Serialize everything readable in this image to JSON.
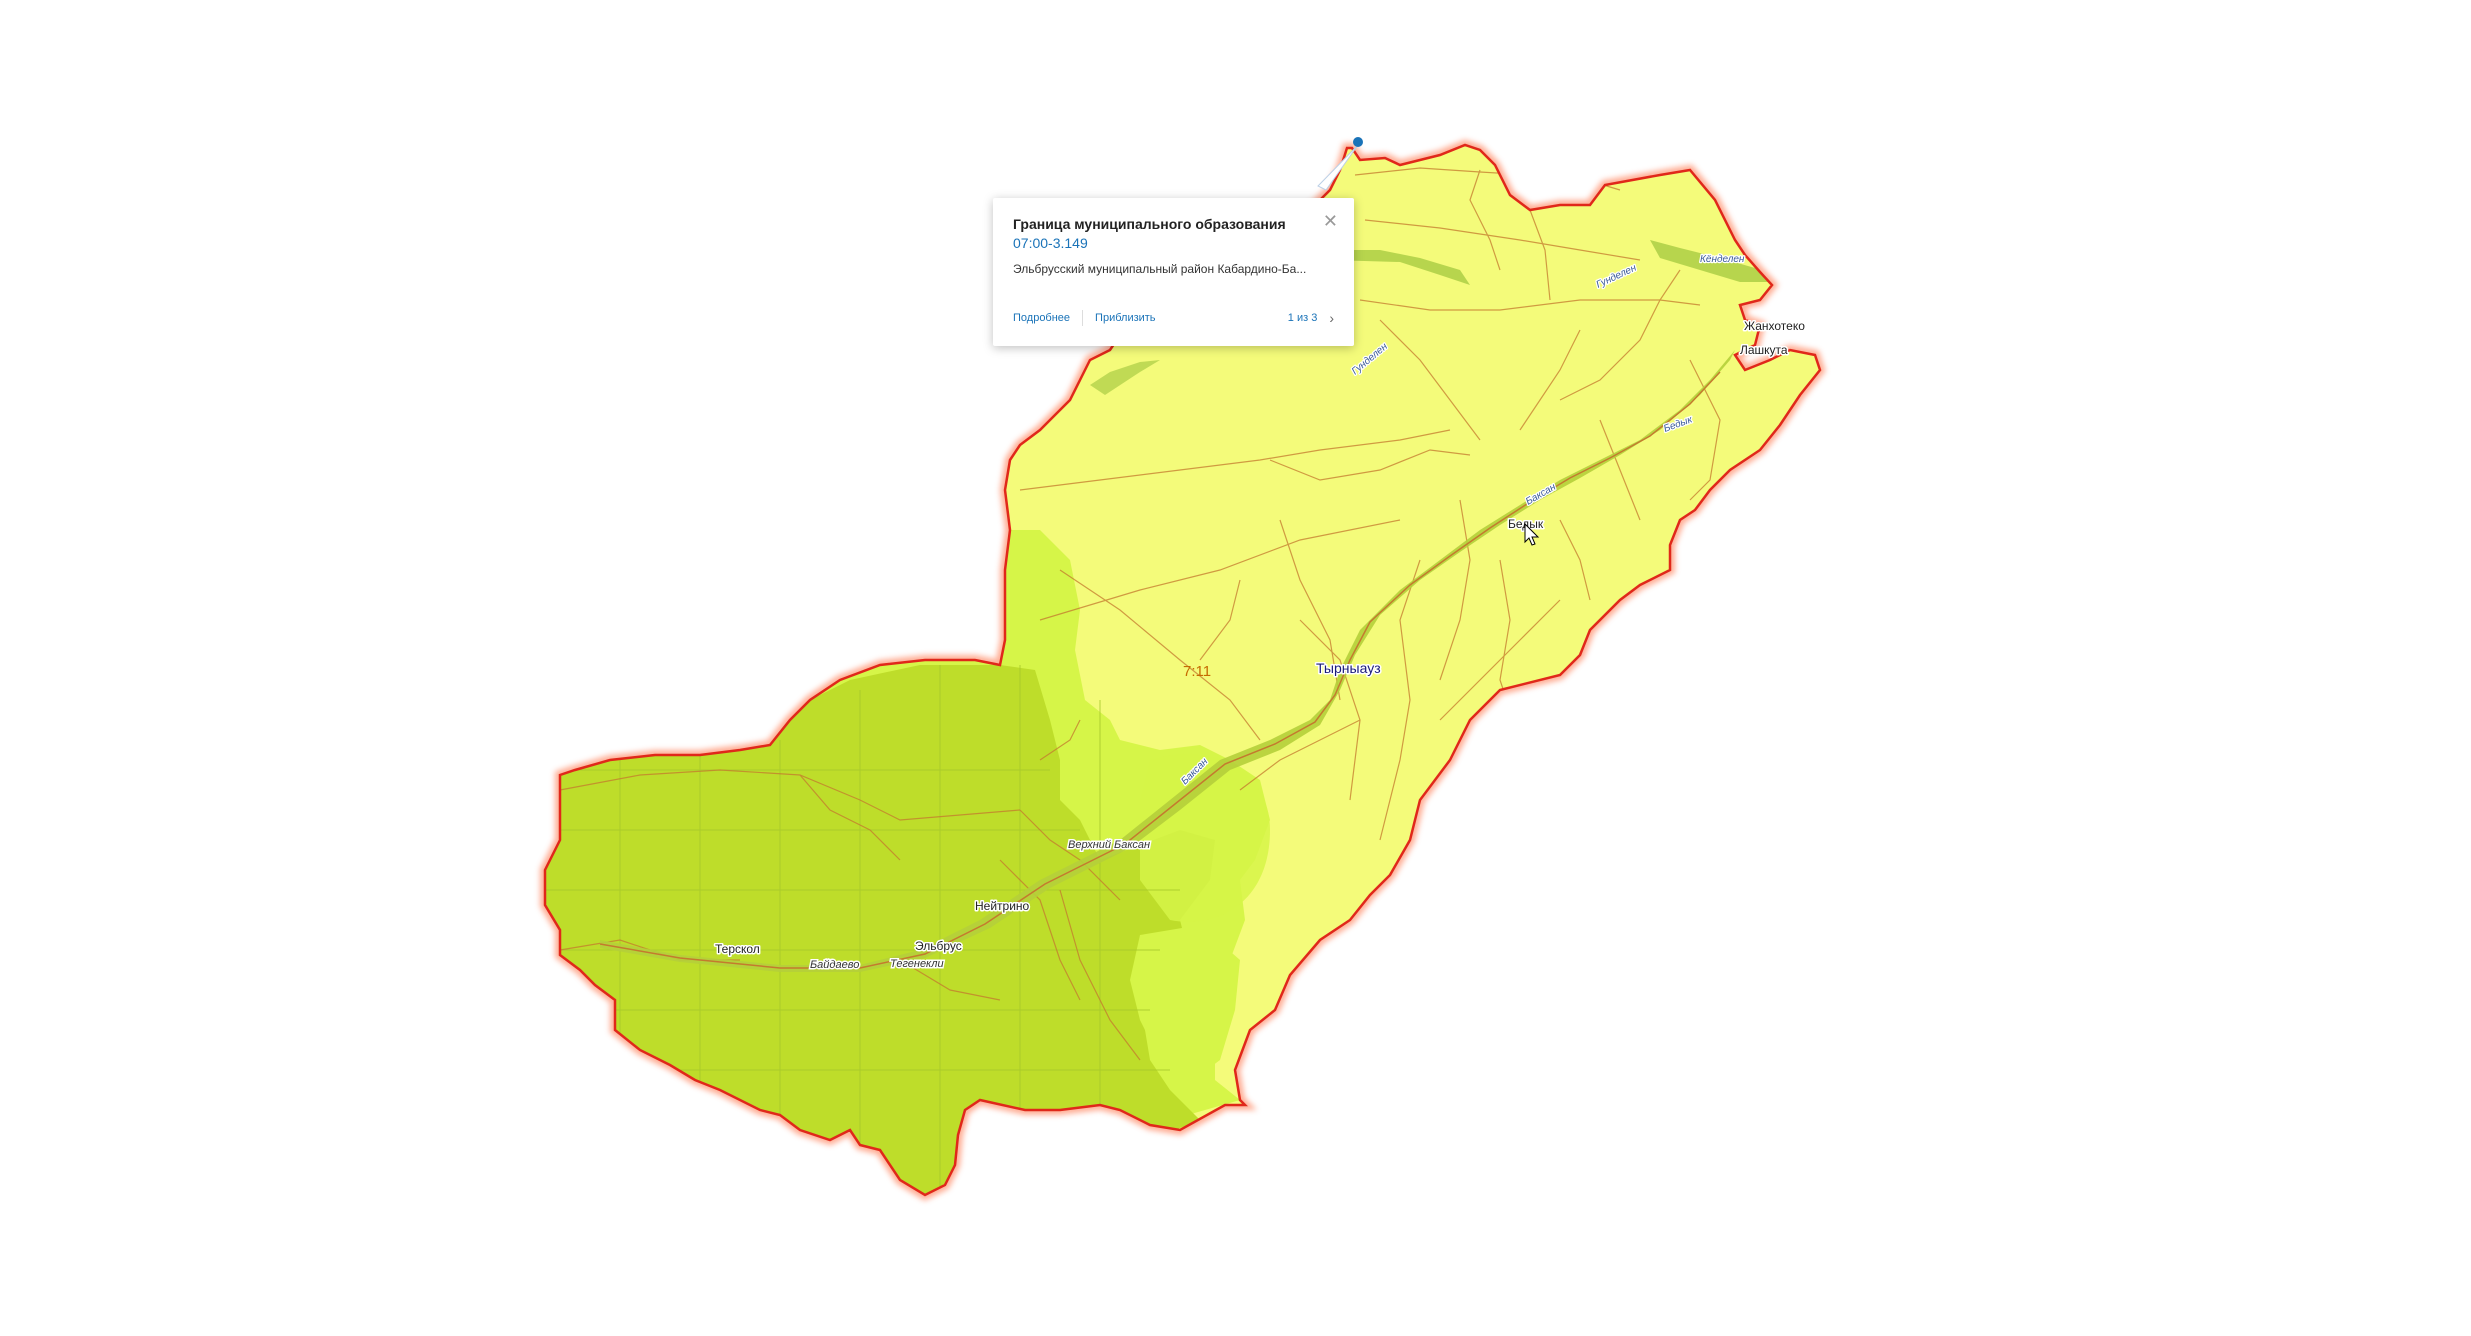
{
  "map": {
    "cadastral_label": "7:11",
    "places": [
      {
        "name": "Тырныауз",
        "size": "big"
      },
      {
        "name": "Жанхотеко",
        "size": "normal"
      },
      {
        "name": "Лашкута",
        "size": "normal"
      },
      {
        "name": "Бедык",
        "size": "normal"
      },
      {
        "name": "Нейтрино",
        "size": "normal"
      },
      {
        "name": "Эльбрус",
        "size": "normal"
      },
      {
        "name": "Терскол",
        "size": "normal"
      }
    ],
    "road_labels": [
      {
        "name": "Верхний Баксан"
      },
      {
        "name": "Байдаево"
      },
      {
        "name": "Тегенекли"
      }
    ],
    "river_labels": [
      {
        "name": "Кёнделен"
      },
      {
        "name": "Гунделен"
      },
      {
        "name": "Гунделен"
      },
      {
        "name": "Бедык"
      },
      {
        "name": "Баксан"
      },
      {
        "name": "Баксан"
      }
    ],
    "colors": {
      "district_fill": "#f4fb7a",
      "park_fill": "#bedd2a",
      "transition_fill": "#d6f548",
      "border": "#e0281a",
      "inner_lines": "#c47a2e",
      "valley": "#9cc43a",
      "pin": "#1a73b8"
    }
  },
  "popup": {
    "title": "Граница муниципального образования",
    "code": "07:00-3.149",
    "description": "Эльбрусский муниципальный район Кабардино-Ба...",
    "more_link": "Подробнее",
    "zoom_link": "Приблизить",
    "pager": "1 из 3",
    "close_icon": "close-icon",
    "next_icon": "chevron-right-icon"
  }
}
